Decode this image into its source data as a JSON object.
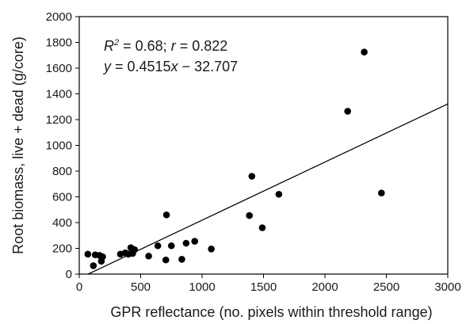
{
  "chart_data": {
    "type": "scatter",
    "xlabel": "GPR reflectance (no. pixels within threshold range)",
    "ylabel": "Root biomass, live + dead (g/core)",
    "xlim": [
      0,
      3000
    ],
    "ylim": [
      0,
      2000
    ],
    "x_ticks": [
      "0",
      "500",
      "1000",
      "1500",
      "2000",
      "2500",
      "3000"
    ],
    "y_ticks": [
      "0",
      "200",
      "400",
      "600",
      "800",
      "1000",
      "1200",
      "1400",
      "1600",
      "1800",
      "2000"
    ],
    "annotations": {
      "r2_label": "R",
      "r2_sup": "2",
      "r2_value": " = 0.68; ",
      "r_label": "r",
      "r_value": " = 0.822",
      "equation_lhs": "y",
      "equation_eq": " = 0.4515",
      "equation_x": "x",
      "equation_tail": " − 32.707"
    },
    "fit": {
      "slope": 0.4515,
      "intercept": -32.707
    },
    "grid": false,
    "legend": "none",
    "marker_color": "#000000",
    "points": [
      {
        "x": 70,
        "y": 155
      },
      {
        "x": 115,
        "y": 65
      },
      {
        "x": 130,
        "y": 150
      },
      {
        "x": 165,
        "y": 145
      },
      {
        "x": 180,
        "y": 100
      },
      {
        "x": 190,
        "y": 135
      },
      {
        "x": 335,
        "y": 155
      },
      {
        "x": 375,
        "y": 165
      },
      {
        "x": 400,
        "y": 155
      },
      {
        "x": 420,
        "y": 205
      },
      {
        "x": 435,
        "y": 160
      },
      {
        "x": 450,
        "y": 190
      },
      {
        "x": 565,
        "y": 140
      },
      {
        "x": 640,
        "y": 220
      },
      {
        "x": 705,
        "y": 110
      },
      {
        "x": 710,
        "y": 460
      },
      {
        "x": 750,
        "y": 220
      },
      {
        "x": 835,
        "y": 115
      },
      {
        "x": 870,
        "y": 240
      },
      {
        "x": 940,
        "y": 255
      },
      {
        "x": 1075,
        "y": 195
      },
      {
        "x": 1385,
        "y": 455
      },
      {
        "x": 1405,
        "y": 760
      },
      {
        "x": 1490,
        "y": 360
      },
      {
        "x": 1625,
        "y": 620
      },
      {
        "x": 2185,
        "y": 1265
      },
      {
        "x": 2320,
        "y": 1725
      },
      {
        "x": 2460,
        "y": 630
      }
    ]
  }
}
